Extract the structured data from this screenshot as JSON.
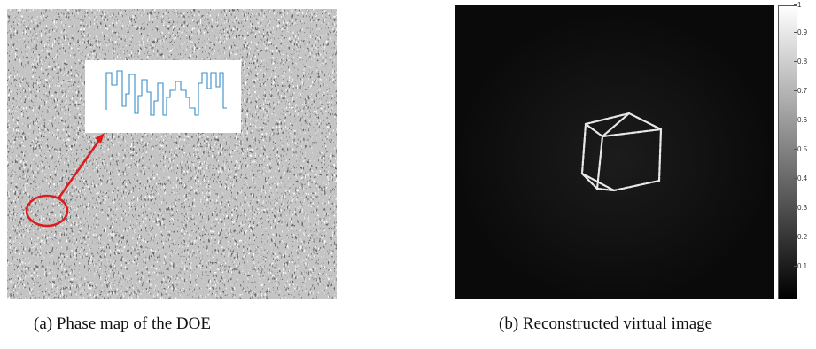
{
  "captions": {
    "a": "(a) Phase map of the DOE",
    "b": "(b) Reconstructed virtual image"
  },
  "colorbar": {
    "ticks": [
      "1",
      "0.9",
      "0.8",
      "0.7",
      "0.6",
      "0.5",
      "0.4",
      "0.3",
      "0.2",
      "0.1"
    ],
    "min_color": "#000000",
    "max_color": "#ffffff"
  },
  "colors": {
    "annotation_red": "#e01b1b",
    "profile_blue": "#3a8cc8",
    "cube_wire": "#e8e8e8"
  }
}
